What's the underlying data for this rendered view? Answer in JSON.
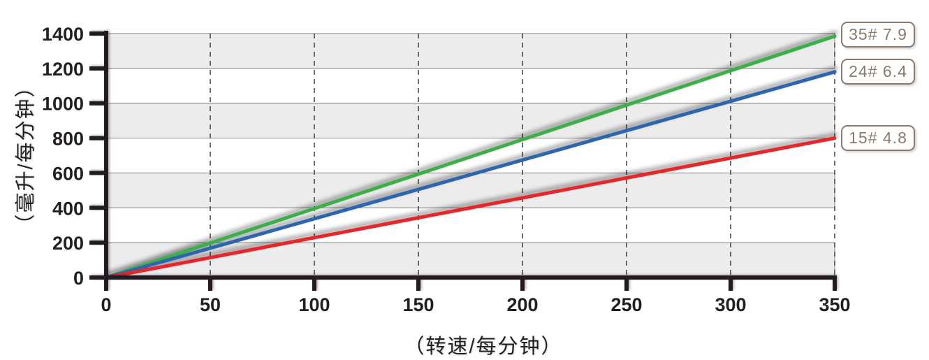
{
  "chart_data": {
    "type": "line",
    "title": "",
    "xlabel": "（转速/每分钟）",
    "ylabel": "（毫升/每分钟）",
    "xlim": [
      0,
      350
    ],
    "ylim": [
      0,
      1400
    ],
    "x_ticks": [
      0,
      50,
      100,
      150,
      200,
      250,
      300,
      350
    ],
    "y_ticks": [
      0,
      200,
      400,
      600,
      800,
      1000,
      1200,
      1400
    ],
    "grid": {
      "vertical_gridlines": "dashed at every x tick",
      "horizontal_bands": "alternating shaded bands every 200 units starting shaded at 0",
      "band_fill": "#ECECEC",
      "band_stroke": "#7F7F7F"
    },
    "legend_position": "right-outside",
    "series": [
      {
        "name": "35#",
        "label": "35# 7.9",
        "color": "#3CAE49",
        "x": [
          0,
          350
        ],
        "y": [
          0,
          1385
        ]
      },
      {
        "name": "24#",
        "label": "24# 6.4",
        "color": "#2E66AD",
        "x": [
          0,
          350
        ],
        "y": [
          0,
          1180
        ]
      },
      {
        "name": "15#",
        "label": "15# 4.8",
        "color": "#E62629",
        "x": [
          0,
          350
        ],
        "y": [
          0,
          800
        ]
      }
    ],
    "axis_color": "#231F20",
    "label_box_color": "#8A7A6E"
  }
}
